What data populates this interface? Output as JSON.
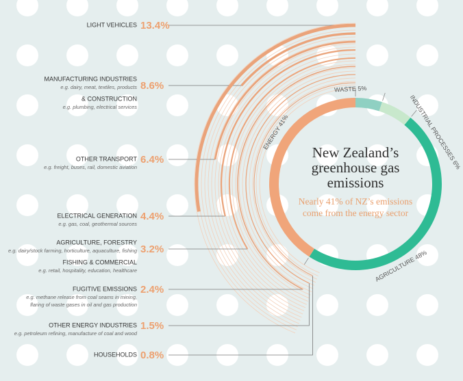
{
  "chart_data": [
    {
      "type": "pie",
      "title": "New Zealand’s greenhouse gas emissions",
      "subtitle": "Nearly 41% of NZ’s emissions come from the energy sector",
      "categories": [
        "ENERGY",
        "WASTE",
        "INDUSTRIAL PROCESSES",
        "AGRICULTURE"
      ],
      "values": [
        41,
        5,
        6,
        48
      ],
      "value_labels": [
        "41%",
        "5%",
        "6%",
        "48%"
      ],
      "colors": [
        "#f0a57a",
        "#8fd0c2",
        "#c8e8cc",
        "#2ebb94"
      ]
    },
    {
      "type": "arc",
      "items": [
        [
          {
            "heading": "LIGHT VEHICLES"
          }
        ],
        [
          {
            "heading": "MANUFACTURING INDUSTRIES",
            "notes": [
              "e.g. dairy, meat, textiles, products"
            ]
          },
          {
            "heading": "& CONSTRUCTION",
            "notes": [
              "e.g. plumbing, electrical services"
            ]
          }
        ],
        [
          {
            "heading": "OTHER TRANSPORT",
            "notes": [
              "e.g. freight, buses, rail, domestic aviation"
            ]
          }
        ],
        [
          {
            "heading": "ELECTRICAL GENERATION",
            "notes": [
              "e.g. gas, coal, geothermal sources"
            ]
          }
        ],
        [
          {
            "heading": "AGRICULTURE, FORESTRY",
            "notes": [
              "e.g. dairy/stock farming, horticulture, aquaculture, fishing"
            ]
          },
          {
            "heading": "FISHING & COMMERCIAL",
            "notes": [
              "e.g. retail, hospitality, education, healthcare"
            ]
          }
        ],
        [
          {
            "heading": "FUGITIVE EMISSIONS",
            "notes": [
              "e.g. methane release from coal seams in mining,",
              "flaring of waste gases in oil and gas production"
            ]
          }
        ],
        [
          {
            "heading": "OTHER ENERGY INDUSTRIES",
            "notes": [
              "e.g. petroleum refining, manufacture of coal and wood"
            ]
          }
        ],
        [
          {
            "heading": "HOUSEHOLDS"
          }
        ]
      ],
      "values": [
        13.4,
        8.6,
        6.4,
        4.4,
        3.2,
        2.4,
        1.5,
        0.8
      ],
      "value_labels": [
        "13.4%",
        "8.6%",
        "6.4%",
        "4.4%",
        "3.2%",
        "2.4%",
        "1.5%",
        "0.8%"
      ],
      "color": "#eaa37a"
    }
  ]
}
